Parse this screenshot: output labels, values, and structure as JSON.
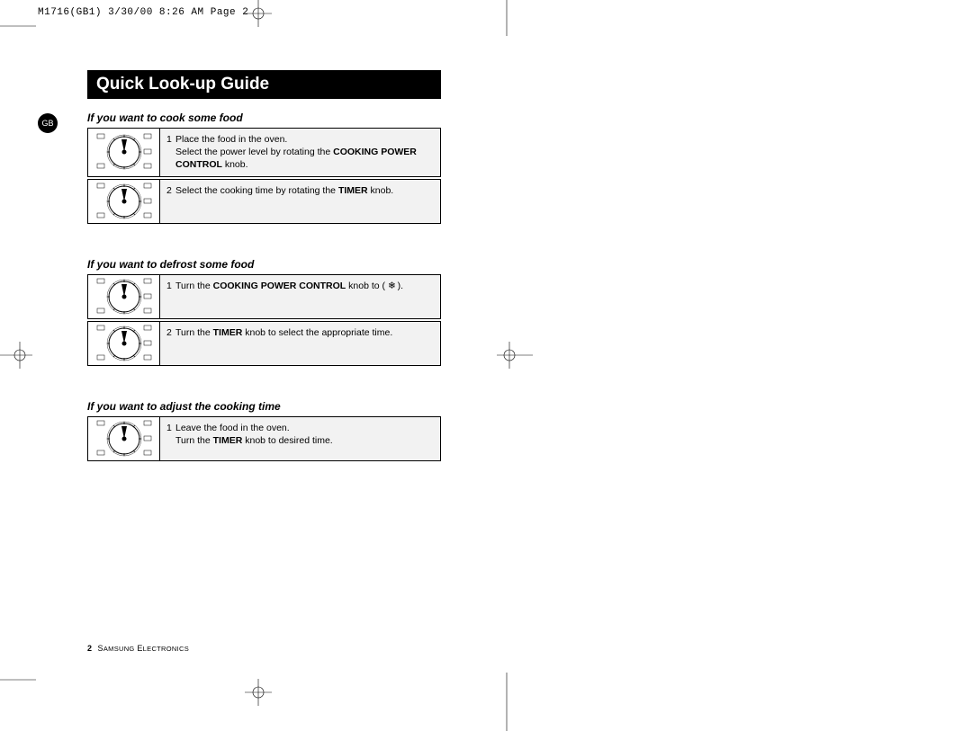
{
  "header": {
    "imprint": "M1716(GB1)  3/30/00 8:26 AM  Page 2"
  },
  "tab": {
    "label": "GB"
  },
  "title": "Quick Look-up Guide",
  "sections": [
    {
      "heading": "If you want to cook some food",
      "steps": [
        {
          "num": "1",
          "html": "Place the food in the oven.<br>Select the power level by  rotating the <b>COOKING POWER CONTROL</b> knob."
        },
        {
          "num": "2",
          "html": "Select the cooking time by rotating the <b>TIMER</b> knob."
        }
      ]
    },
    {
      "heading": "If you want to defrost some food",
      "steps": [
        {
          "num": "1",
          "html": "Turn the <b>COOKING POWER CONTROL</b> knob to ( <span style='letter-spacing:-1px;'>❄</span> )."
        },
        {
          "num": "2",
          "html": "Turn the <b>TIMER</b> knob to select the appropriate time."
        }
      ]
    },
    {
      "heading": "If you want to adjust the cooking time",
      "steps": [
        {
          "num": "1",
          "html": "Leave the food in the oven.<br>Turn the <b>TIMER</b> knob to desired time."
        }
      ]
    }
  ],
  "footer": {
    "page_num": "2",
    "brand": "Samsung Electronics"
  },
  "colors": {
    "step_bg": "#f2f2f2",
    "border": "#000000",
    "page_bg": "#ffffff"
  }
}
